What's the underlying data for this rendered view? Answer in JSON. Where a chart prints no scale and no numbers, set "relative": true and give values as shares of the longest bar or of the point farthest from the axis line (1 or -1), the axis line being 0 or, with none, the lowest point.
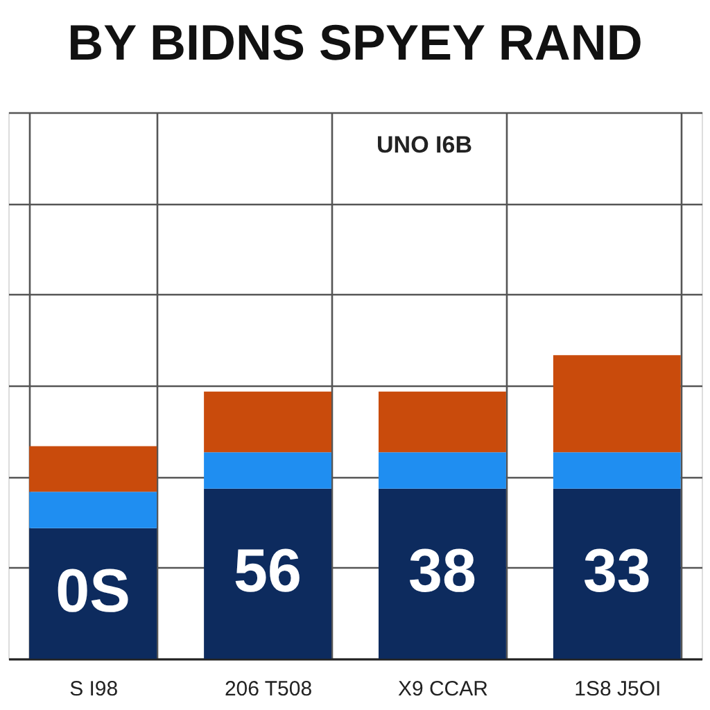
{
  "chart_data": {
    "type": "bar",
    "title": "BY BIDNS SPYEY RAND",
    "categories": [
      "S I98",
      "206 T508",
      "X9 CCAR",
      "1S8 J5OI"
    ],
    "relative": true,
    "stacked": true,
    "series": [
      {
        "color": "#0d2b5e",
        "values": [
          0.43,
          0.56,
          0.56,
          0.56
        ]
      },
      {
        "color": "#1f8ef1",
        "values": [
          0.12,
          0.12,
          0.12,
          0.12
        ]
      },
      {
        "color": "#c94b0c",
        "values": [
          0.15,
          0.2,
          0.2,
          0.32
        ]
      }
    ],
    "annotations": [
      "UNO I6B",
      "0S",
      "56",
      "38",
      "33"
    ],
    "grid": true,
    "legend": false
  }
}
